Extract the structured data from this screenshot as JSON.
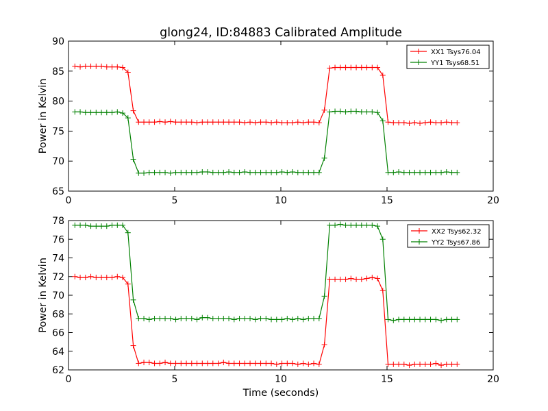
{
  "figure": {
    "title": "glong24, ID:84883 Calibrated Amplitude",
    "xlabel": "Time (seconds)"
  },
  "colors": {
    "xx": "#ff0000",
    "yy": "#008000"
  },
  "chart_data": [
    {
      "type": "line",
      "title": "glong24, ID:84883 Calibrated Amplitude",
      "ylabel": "Power in Kelvin",
      "xlabel": "",
      "xlim": [
        0,
        20
      ],
      "ylim": [
        65,
        90
      ],
      "xticks": [
        0,
        5,
        10,
        15,
        20
      ],
      "yticks": [
        65,
        70,
        75,
        80,
        85,
        90
      ],
      "legend": "top-right",
      "grid": false,
      "x": [
        0.3,
        0.55,
        0.8,
        1.05,
        1.3,
        1.55,
        1.8,
        2.05,
        2.3,
        2.55,
        2.8,
        3.05,
        3.3,
        3.55,
        3.8,
        4.05,
        4.3,
        4.55,
        4.8,
        5.05,
        5.3,
        5.55,
        5.8,
        6.05,
        6.3,
        6.55,
        6.8,
        7.05,
        7.3,
        7.55,
        7.8,
        8.05,
        8.3,
        8.55,
        8.8,
        9.05,
        9.3,
        9.55,
        9.8,
        10.05,
        10.3,
        10.55,
        10.8,
        11.05,
        11.3,
        11.55,
        11.8,
        12.05,
        12.3,
        12.55,
        12.8,
        13.05,
        13.3,
        13.55,
        13.8,
        14.05,
        14.3,
        14.55,
        14.8,
        15.05,
        15.3,
        15.55,
        15.8,
        16.05,
        16.3,
        16.55,
        16.8,
        17.05,
        17.3,
        17.55,
        17.8,
        18.05,
        18.3
      ],
      "series": [
        {
          "name": "XX1 Tsys76.04",
          "color": "#ff0000",
          "values": [
            85.8,
            85.7,
            85.8,
            85.8,
            85.8,
            85.8,
            85.7,
            85.7,
            85.7,
            85.6,
            84.8,
            78.4,
            76.5,
            76.5,
            76.5,
            76.5,
            76.6,
            76.5,
            76.6,
            76.5,
            76.5,
            76.5,
            76.5,
            76.4,
            76.5,
            76.5,
            76.5,
            76.5,
            76.5,
            76.5,
            76.5,
            76.5,
            76.4,
            76.5,
            76.4,
            76.5,
            76.5,
            76.4,
            76.5,
            76.4,
            76.4,
            76.4,
            76.5,
            76.4,
            76.5,
            76.5,
            76.4,
            78.5,
            85.5,
            85.6,
            85.6,
            85.6,
            85.6,
            85.6,
            85.6,
            85.6,
            85.6,
            85.6,
            84.3,
            76.5,
            76.4,
            76.4,
            76.4,
            76.3,
            76.4,
            76.3,
            76.4,
            76.5,
            76.4,
            76.4,
            76.5,
            76.4,
            76.4
          ]
        },
        {
          "name": "YY1 Tsys68.51",
          "color": "#008000",
          "values": [
            78.2,
            78.2,
            78.1,
            78.1,
            78.1,
            78.1,
            78.1,
            78.1,
            78.2,
            78.0,
            77.2,
            70.3,
            68.0,
            68.0,
            68.1,
            68.1,
            68.1,
            68.1,
            68.0,
            68.1,
            68.1,
            68.1,
            68.1,
            68.1,
            68.2,
            68.2,
            68.1,
            68.1,
            68.1,
            68.2,
            68.1,
            68.1,
            68.2,
            68.1,
            68.1,
            68.1,
            68.1,
            68.1,
            68.1,
            68.2,
            68.1,
            68.2,
            68.1,
            68.1,
            68.1,
            68.1,
            68.1,
            70.5,
            78.2,
            78.3,
            78.3,
            78.2,
            78.3,
            78.3,
            78.2,
            78.2,
            78.2,
            78.1,
            76.7,
            68.1,
            68.1,
            68.2,
            68.1,
            68.1,
            68.1,
            68.1,
            68.1,
            68.1,
            68.1,
            68.1,
            68.2,
            68.1,
            68.1
          ]
        }
      ]
    },
    {
      "type": "line",
      "title": "",
      "ylabel": "Power in Kelvin",
      "xlabel": "Time (seconds)",
      "xlim": [
        0,
        20
      ],
      "ylim": [
        62,
        78
      ],
      "xticks": [
        0,
        5,
        10,
        15,
        20
      ],
      "yticks": [
        62,
        64,
        66,
        68,
        70,
        72,
        74,
        76,
        78
      ],
      "legend": "top-right",
      "grid": false,
      "x": [
        0.3,
        0.55,
        0.8,
        1.05,
        1.3,
        1.55,
        1.8,
        2.05,
        2.3,
        2.55,
        2.8,
        3.05,
        3.3,
        3.55,
        3.8,
        4.05,
        4.3,
        4.55,
        4.8,
        5.05,
        5.3,
        5.55,
        5.8,
        6.05,
        6.3,
        6.55,
        6.8,
        7.05,
        7.3,
        7.55,
        7.8,
        8.05,
        8.3,
        8.55,
        8.8,
        9.05,
        9.3,
        9.55,
        9.8,
        10.05,
        10.3,
        10.55,
        10.8,
        11.05,
        11.3,
        11.55,
        11.8,
        12.05,
        12.3,
        12.55,
        12.8,
        13.05,
        13.3,
        13.55,
        13.8,
        14.05,
        14.3,
        14.55,
        14.8,
        15.05,
        15.3,
        15.55,
        15.8,
        16.05,
        16.3,
        16.55,
        16.8,
        17.05,
        17.3,
        17.55,
        17.8,
        18.05,
        18.3
      ],
      "series": [
        {
          "name": "XX2 Tsys62.32",
          "color": "#ff0000",
          "values": [
            72.0,
            71.9,
            71.9,
            72.0,
            71.9,
            71.9,
            71.9,
            71.9,
            72.0,
            71.9,
            71.2,
            64.6,
            62.7,
            62.8,
            62.8,
            62.7,
            62.7,
            62.8,
            62.7,
            62.7,
            62.7,
            62.7,
            62.7,
            62.7,
            62.7,
            62.7,
            62.7,
            62.7,
            62.8,
            62.7,
            62.7,
            62.7,
            62.7,
            62.7,
            62.7,
            62.7,
            62.7,
            62.7,
            62.6,
            62.7,
            62.7,
            62.7,
            62.6,
            62.7,
            62.6,
            62.7,
            62.6,
            64.7,
            71.7,
            71.7,
            71.7,
            71.7,
            71.8,
            71.7,
            71.7,
            71.8,
            71.9,
            71.8,
            70.5,
            62.6,
            62.6,
            62.6,
            62.6,
            62.5,
            62.6,
            62.6,
            62.6,
            62.6,
            62.7,
            62.5,
            62.6,
            62.6,
            62.6
          ]
        },
        {
          "name": "YY2 Tsys67.86",
          "color": "#008000",
          "values": [
            77.5,
            77.5,
            77.5,
            77.4,
            77.4,
            77.4,
            77.4,
            77.5,
            77.5,
            77.5,
            76.7,
            69.5,
            67.5,
            67.5,
            67.4,
            67.5,
            67.5,
            67.5,
            67.5,
            67.4,
            67.5,
            67.5,
            67.5,
            67.4,
            67.6,
            67.6,
            67.5,
            67.5,
            67.5,
            67.5,
            67.4,
            67.5,
            67.5,
            67.5,
            67.4,
            67.5,
            67.5,
            67.4,
            67.4,
            67.4,
            67.5,
            67.4,
            67.5,
            67.4,
            67.5,
            67.5,
            67.5,
            69.9,
            77.5,
            77.5,
            77.6,
            77.5,
            77.5,
            77.5,
            77.5,
            77.5,
            77.5,
            77.4,
            76.0,
            67.4,
            67.3,
            67.4,
            67.4,
            67.4,
            67.4,
            67.4,
            67.4,
            67.4,
            67.4,
            67.3,
            67.4,
            67.4,
            67.4
          ]
        }
      ]
    }
  ]
}
